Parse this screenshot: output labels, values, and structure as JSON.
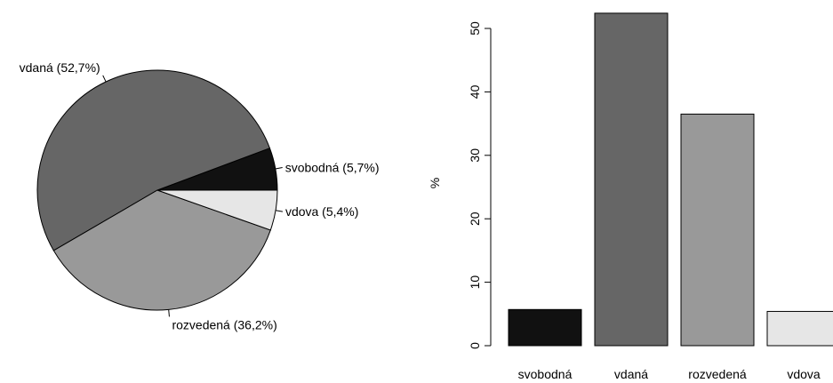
{
  "chart_data": [
    {
      "type": "pie",
      "categories": [
        "svobodná",
        "vdaná",
        "rozvedená",
        "vdova"
      ],
      "values": [
        5.7,
        52.7,
        36.2,
        5.4
      ],
      "slice_labels": [
        "svobodná (5,7%)",
        "vdaná (52,7%)",
        "rozvedená (36,2%)",
        "vdova (5,4%)"
      ],
      "colors": [
        "#111111",
        "#666666",
        "#999999",
        "#e6e6e6"
      ],
      "direction": "counterclockwise",
      "start": "3 o'clock"
    },
    {
      "type": "bar",
      "categories": [
        "svobodná",
        "vdaná",
        "rozvedená",
        "vdova"
      ],
      "values": [
        5.7,
        52.4,
        36.5,
        5.4
      ],
      "ylabel": "%",
      "ylim": [
        0,
        55
      ],
      "yticks": [
        0,
        10,
        20,
        30,
        40,
        50
      ],
      "colors": [
        "#111111",
        "#666666",
        "#999999",
        "#e6e6e6"
      ],
      "grid": false
    }
  ]
}
